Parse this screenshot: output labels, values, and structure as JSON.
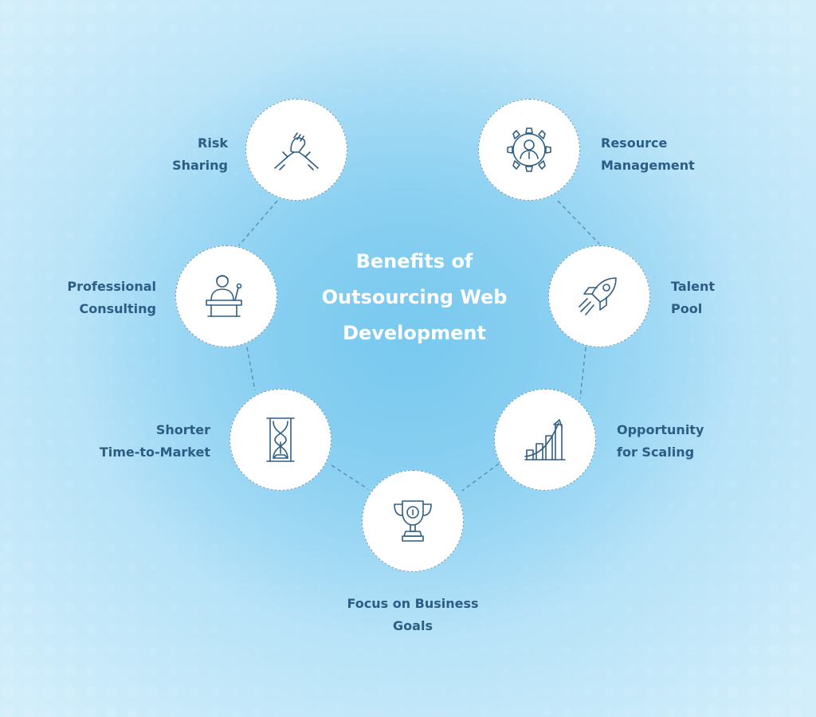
{
  "title": {
    "line1": "Benefits of",
    "line2": "Outsourcing Web",
    "line3": "Development"
  },
  "benefits": [
    {
      "line1": "Risk",
      "line2": "Sharing",
      "icon": "handshake-icon"
    },
    {
      "line1": "Resource",
      "line2": "Management",
      "icon": "gear-person-icon"
    },
    {
      "line1": "Professional",
      "line2": "Consulting",
      "icon": "speaker-podium-icon"
    },
    {
      "line1": "Talent",
      "line2": "Pool",
      "icon": "rocket-icon"
    },
    {
      "line1": "Shorter",
      "line2": "Time-to-Market",
      "icon": "hourglass-icon"
    },
    {
      "line1": "Opportunity",
      "line2": "for Scaling",
      "icon": "growth-chart-icon"
    },
    {
      "line1": "Focus on Business",
      "line2": "Goals",
      "icon": "trophy-icon"
    }
  ],
  "colors": {
    "text": "#2c5d84",
    "icon": "#2f5f84",
    "title": "#ffffff",
    "background": "#9cd7f4"
  }
}
